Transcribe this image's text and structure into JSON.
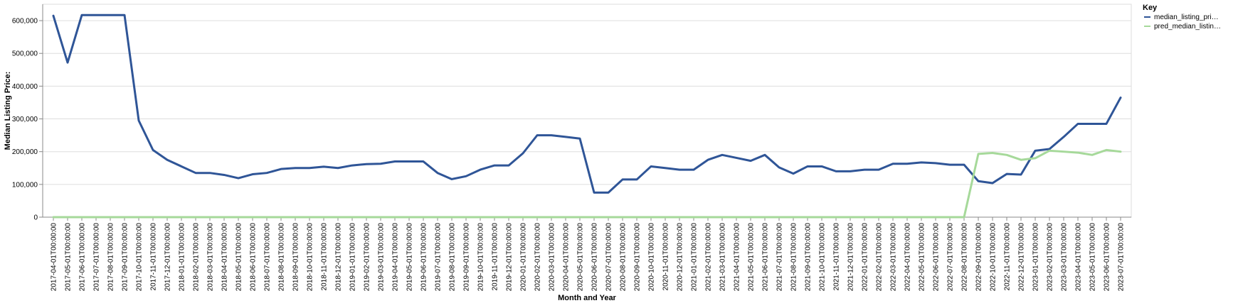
{
  "chart_data": {
    "type": "line",
    "xlabel": "Month and Year",
    "ylabel": "Median Listing Price:",
    "ylim": [
      0,
      650000
    ],
    "yticks": [
      0,
      100000,
      200000,
      300000,
      400000,
      500000,
      600000
    ],
    "ytick_labels": [
      "0",
      "100,000",
      "200,000",
      "300,000",
      "400,000",
      "500,000",
      "600,000"
    ],
    "grid": true,
    "legend": {
      "title": "Key",
      "position": "top-right"
    },
    "colors": {
      "median_listing_price": "#2f5597",
      "pred_median_listing_price": "#a6d99a"
    },
    "x": [
      "2017-04-01T00:00:00",
      "2017-05-01T00:00:00",
      "2017-06-01T00:00:00",
      "2017-07-01T00:00:00",
      "2017-08-01T00:00:00",
      "2017-09-01T00:00:00",
      "2017-10-01T00:00:00",
      "2017-11-01T00:00:00",
      "2017-12-01T00:00:00",
      "2018-01-01T00:00:00",
      "2018-02-01T00:00:00",
      "2018-03-01T00:00:00",
      "2018-04-01T00:00:00",
      "2018-05-01T00:00:00",
      "2018-06-01T00:00:00",
      "2018-07-01T00:00:00",
      "2018-08-01T00:00:00",
      "2018-09-01T00:00:00",
      "2018-10-01T00:00:00",
      "2018-11-01T00:00:00",
      "2018-12-01T00:00:00",
      "2019-01-01T00:00:00",
      "2019-02-01T00:00:00",
      "2019-03-01T00:00:00",
      "2019-04-01T00:00:00",
      "2019-05-01T00:00:00",
      "2019-06-01T00:00:00",
      "2019-07-01T00:00:00",
      "2019-08-01T00:00:00",
      "2019-09-01T00:00:00",
      "2019-10-01T00:00:00",
      "2019-11-01T00:00:00",
      "2019-12-01T00:00:00",
      "2020-01-01T00:00:00",
      "2020-02-01T00:00:00",
      "2020-03-01T00:00:00",
      "2020-04-01T00:00:00",
      "2020-05-01T00:00:00",
      "2020-06-01T00:00:00",
      "2020-07-01T00:00:00",
      "2020-08-01T00:00:00",
      "2020-09-01T00:00:00",
      "2020-10-01T00:00:00",
      "2020-11-01T00:00:00",
      "2020-12-01T00:00:00",
      "2021-01-01T00:00:00",
      "2021-02-01T00:00:00",
      "2021-03-01T00:00:00",
      "2021-04-01T00:00:00",
      "2021-05-01T00:00:00",
      "2021-06-01T00:00:00",
      "2021-07-01T00:00:00",
      "2021-08-01T00:00:00",
      "2021-09-01T00:00:00",
      "2021-10-01T00:00:00",
      "2021-11-01T00:00:00",
      "2021-12-01T00:00:00",
      "2022-01-01T00:00:00",
      "2022-02-01T00:00:00",
      "2022-03-01T00:00:00",
      "2022-04-01T00:00:00",
      "2022-05-01T00:00:00",
      "2022-06-01T00:00:00",
      "2022-07-01T00:00:00",
      "2022-08-01T00:00:00",
      "2022-09-01T00:00:00",
      "2022-10-01T00:00:00",
      "2022-11-01T00:00:00",
      "2022-12-01T00:00:00",
      "2023-01-01T00:00:00",
      "2023-02-01T00:00:00",
      "2023-03-01T00:00:00",
      "2023-04-01T00:00:00",
      "2023-05-01T00:00:00",
      "2023-06-01T00:00:00",
      "2023-07-01T00:00:00"
    ],
    "series": [
      {
        "name": "median_listing_pri…",
        "key": "median_listing_price",
        "values": [
          615000,
          472000,
          617000,
          617000,
          617000,
          617000,
          295000,
          205000,
          175000,
          155000,
          135000,
          135000,
          129000,
          119000,
          131000,
          135000,
          147000,
          150000,
          150000,
          154000,
          150000,
          158000,
          162000,
          163000,
          170000,
          170000,
          170000,
          135000,
          116000,
          125000,
          145000,
          158000,
          158000,
          195000,
          250000,
          250000,
          245000,
          240000,
          75000,
          75000,
          115000,
          115000,
          155000,
          150000,
          145000,
          145000,
          175000,
          190000,
          181000,
          172000,
          190000,
          152000,
          133000,
          155000,
          155000,
          140000,
          140000,
          145000,
          145000,
          163000,
          163000,
          167000,
          165000,
          160000,
          160000,
          110000,
          104000,
          132000,
          130000,
          203000,
          208000,
          245000,
          285000,
          285000,
          285000,
          365000
        ]
      },
      {
        "name": "pred_median_listin…",
        "key": "pred_median_listing_price",
        "values": [
          0,
          0,
          0,
          0,
          0,
          0,
          0,
          0,
          0,
          0,
          0,
          0,
          0,
          0,
          0,
          0,
          0,
          0,
          0,
          0,
          0,
          0,
          0,
          0,
          0,
          0,
          0,
          0,
          0,
          0,
          0,
          0,
          0,
          0,
          0,
          0,
          0,
          0,
          0,
          0,
          0,
          0,
          0,
          0,
          0,
          0,
          0,
          0,
          0,
          0,
          0,
          0,
          0,
          0,
          0,
          0,
          0,
          0,
          0,
          0,
          0,
          0,
          0,
          0,
          0,
          193000,
          196000,
          190000,
          175000,
          180000,
          203000,
          200000,
          197000,
          190000,
          205000,
          200000
        ]
      }
    ]
  }
}
